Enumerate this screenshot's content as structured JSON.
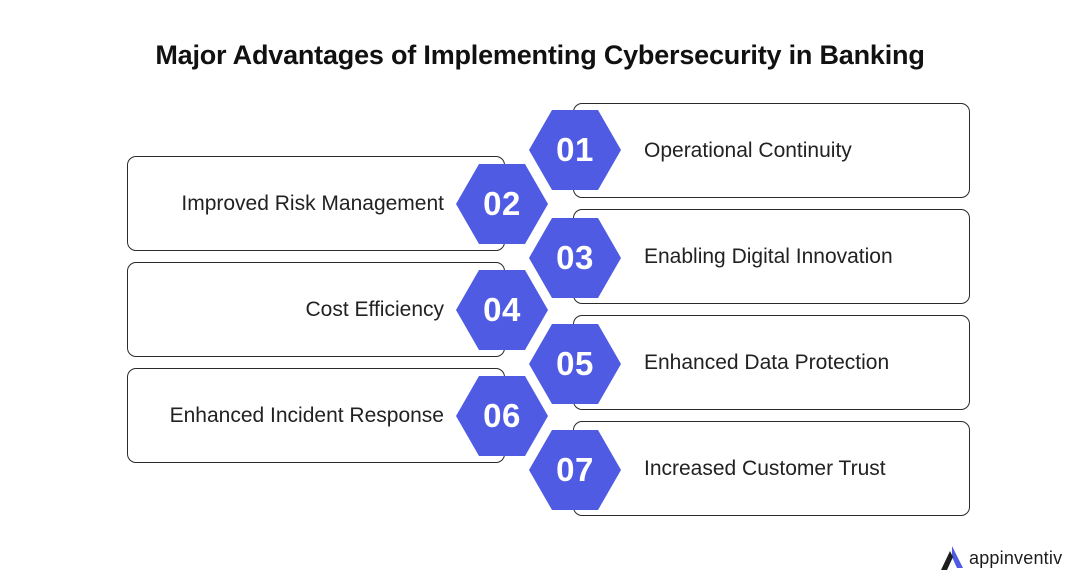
{
  "title": "Major Advantages of Implementing Cybersecurity in Banking",
  "colors": {
    "hex_fill": "#4F5BE3",
    "border": "#2a2a2a"
  },
  "items": [
    {
      "number": "01",
      "label": "Operational Continuity"
    },
    {
      "number": "02",
      "label": "Improved Risk Management"
    },
    {
      "number": "03",
      "label": "Enabling Digital Innovation"
    },
    {
      "number": "04",
      "label": "Cost Efficiency"
    },
    {
      "number": "05",
      "label": "Enhanced Data Protection"
    },
    {
      "number": "06",
      "label": "Enhanced Incident Response"
    },
    {
      "number": "07",
      "label": "Increased Customer Trust"
    }
  ],
  "logo": {
    "text": "appinventiv",
    "icon": "appinventiv-logo-icon"
  }
}
